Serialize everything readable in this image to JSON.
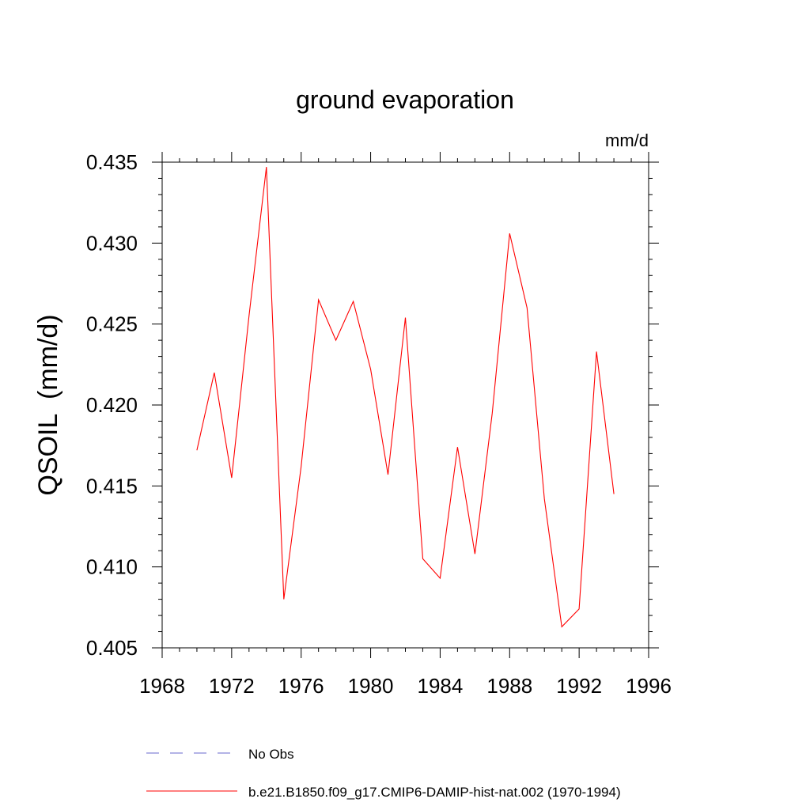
{
  "chart_data": {
    "type": "line",
    "title": "ground evaporation",
    "units_label": "mm/d",
    "ylabel": "QSOIL  (mm/d)",
    "xlabel": "",
    "xlim": [
      1968,
      1996
    ],
    "ylim": [
      0.405,
      0.435
    ],
    "x_ticks": [
      1968,
      1972,
      1976,
      1980,
      1984,
      1988,
      1992,
      1996
    ],
    "x_tick_labels": [
      "1968",
      "1972",
      "1976",
      "1980",
      "1984",
      "1988",
      "1992",
      "1996"
    ],
    "y_ticks": [
      0.405,
      0.41,
      0.415,
      0.42,
      0.425,
      0.43,
      0.435
    ],
    "y_tick_labels": [
      "0.405",
      "0.410",
      "0.415",
      "0.420",
      "0.425",
      "0.430",
      "0.435"
    ],
    "grid": false,
    "legend_position": "bottom",
    "legend": [
      {
        "label": "No Obs",
        "color": "#6a6acd",
        "dash": "dashed"
      },
      {
        "label": "b.e21.B1850.f09_g17.CMIP6-DAMIP-hist-nat.002 (1970-1994)",
        "color": "#ff0000",
        "dash": "solid"
      }
    ],
    "series": [
      {
        "name": "b.e21.B1850.f09_g17.CMIP6-DAMIP-hist-nat.002 (1970-1994)",
        "color": "#ff0000",
        "x": [
          1970,
          1971,
          1972,
          1973,
          1974,
          1975,
          1976,
          1977,
          1978,
          1979,
          1980,
          1981,
          1982,
          1983,
          1984,
          1985,
          1986,
          1987,
          1988,
          1989,
          1990,
          1991,
          1992,
          1993,
          1994
        ],
        "values": [
          0.4172,
          0.422,
          0.4155,
          0.4255,
          0.4347,
          0.408,
          0.4162,
          0.4265,
          0.424,
          0.4264,
          0.4222,
          0.4157,
          0.4254,
          0.4105,
          0.4093,
          0.4174,
          0.4108,
          0.4195,
          0.4306,
          0.426,
          0.4142,
          0.4063,
          0.4074,
          0.4233,
          0.4145
        ]
      }
    ]
  }
}
